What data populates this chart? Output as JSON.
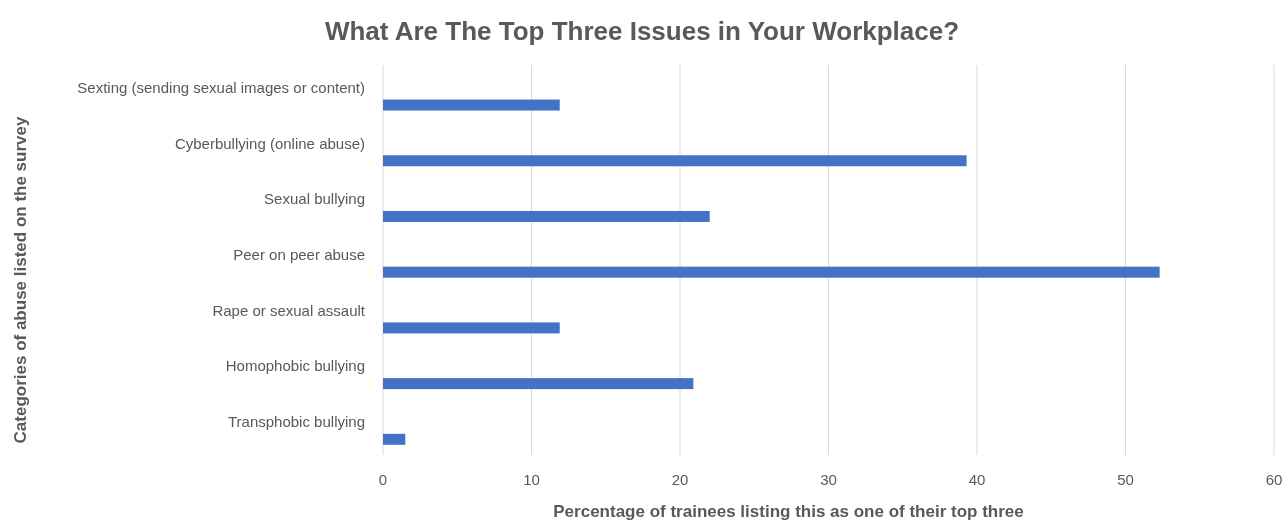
{
  "chart_data": {
    "type": "bar",
    "orientation": "horizontal",
    "title": "What Are The Top Three Issues in Your Workplace?",
    "xlabel": "Percentage of trainees listing this as one of their top three",
    "ylabel": "Categories of abuse listed on the survey",
    "categories": [
      "Sexting (sending sexual images or content)",
      "Cyberbullying (online abuse)",
      "Sexual bullying",
      "Peer on peer abuse",
      "Rape or sexual assault",
      "Homophobic bullying",
      "Transphobic bullying"
    ],
    "values": [
      11.9,
      39.3,
      22.0,
      52.3,
      11.9,
      20.9,
      1.5
    ],
    "color": "#4472c4",
    "xlim": [
      0,
      60
    ],
    "xticks": [
      0,
      10,
      20,
      30,
      40,
      50,
      60
    ],
    "grid": "x"
  }
}
